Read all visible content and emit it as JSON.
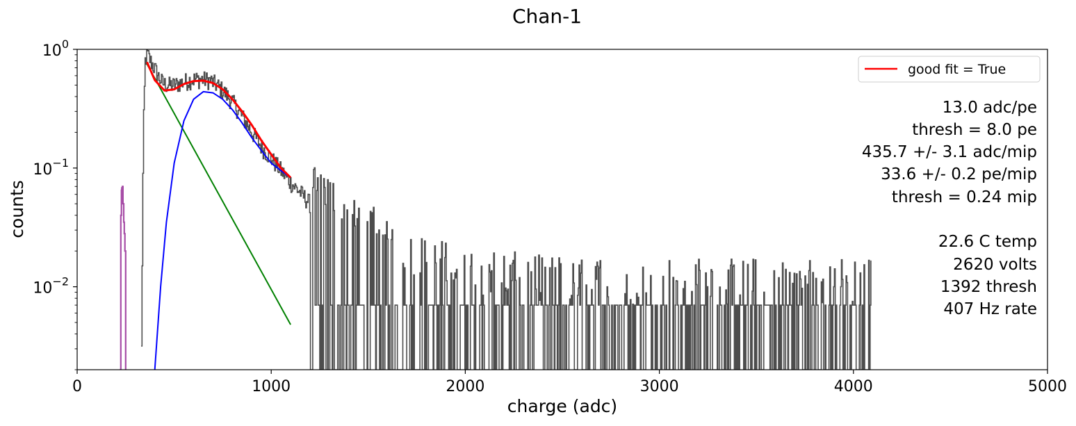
{
  "chart_data": {
    "type": "line",
    "title": "Chan-1",
    "xlabel": "charge (adc)",
    "ylabel": "counts",
    "xlim": [
      0,
      5000
    ],
    "ylim": [
      0.002,
      1.0
    ],
    "yscale": "log",
    "grid": false,
    "legend_loc": "top-right",
    "x_ticks": [
      {
        "value": 0,
        "label": "0"
      },
      {
        "value": 1000,
        "label": "1000"
      },
      {
        "value": 2000,
        "label": "2000"
      },
      {
        "value": 3000,
        "label": "3000"
      },
      {
        "value": 4000,
        "label": "4000"
      },
      {
        "value": 5000,
        "label": "5000"
      }
    ],
    "y_ticks": [
      {
        "value": 1.0,
        "base": "10",
        "exp": "0"
      },
      {
        "value": 0.1,
        "base": "10",
        "exp": "−1"
      },
      {
        "value": 0.01,
        "base": "10",
        "exp": "−2"
      }
    ],
    "legend": [
      {
        "label": "good fit = True",
        "color": "#ff0000"
      }
    ],
    "annotations": [
      "13.0  adc/pe",
      "thresh = 8.0 pe",
      "435.7 +/- 3.1  adc/mip",
      "33.6 +/- 0.2  pe/mip",
      "thresh = 0.24 mip",
      "",
      "22.6 C temp",
      "2620 volts",
      "1392 thresh",
      "407 Hz rate"
    ],
    "series": [
      {
        "role": "histogram",
        "color": "#4d4d4d",
        "x": [
          330,
          340,
          350,
          360,
          380,
          400,
          420,
          440,
          460,
          480,
          500,
          530,
          560,
          600,
          640,
          680,
          720,
          760,
          800,
          850,
          900,
          950,
          1000,
          1050,
          1100,
          1150,
          1200,
          1300,
          1400,
          1500,
          1600,
          1700,
          1800,
          1900,
          2000,
          2200,
          2400,
          2600,
          2800,
          3000,
          3200,
          3400,
          3600,
          3800,
          4000,
          4090
        ],
        "y": [
          0.003,
          0.2,
          0.8,
          0.92,
          0.78,
          0.68,
          0.58,
          0.52,
          0.5,
          0.5,
          0.5,
          0.52,
          0.54,
          0.56,
          0.56,
          0.55,
          0.5,
          0.43,
          0.36,
          0.27,
          0.2,
          0.15,
          0.12,
          0.095,
          0.075,
          0.062,
          0.05,
          0.035,
          0.026,
          0.02,
          0.016,
          0.013,
          0.011,
          0.0095,
          0.0085,
          0.008,
          0.0075,
          0.0072,
          0.007,
          0.007,
          0.007,
          0.007,
          0.007,
          0.007,
          0.007,
          0.007
        ]
      },
      {
        "role": "pedestal",
        "color": "#a64ca6",
        "x": [
          220,
          225,
          228,
          230,
          233,
          236,
          240,
          243,
          246,
          250
        ],
        "y": [
          0.002,
          0.04,
          0.065,
          0.068,
          0.07,
          0.05,
          0.035,
          0.028,
          0.02,
          0.002
        ]
      },
      {
        "role": "fit-total",
        "name": "good fit = True",
        "color": "#ff0000",
        "x": [
          360,
          400,
          450,
          500,
          550,
          600,
          650,
          700,
          750,
          800,
          850,
          900,
          950,
          1000,
          1050,
          1100
        ],
        "y": [
          0.78,
          0.55,
          0.45,
          0.46,
          0.51,
          0.54,
          0.545,
          0.52,
          0.46,
          0.38,
          0.3,
          0.23,
          0.17,
          0.13,
          0.1,
          0.083
        ]
      },
      {
        "role": "fit-exponential",
        "color": "#008000",
        "x": [
          360,
          1100
        ],
        "y": [
          0.75,
          0.0048
        ]
      },
      {
        "role": "fit-signal",
        "color": "#0000ff",
        "x": [
          400,
          430,
          460,
          500,
          550,
          600,
          650,
          700,
          750,
          800,
          850,
          900,
          950,
          1000,
          1050,
          1100
        ],
        "y": [
          0.002,
          0.01,
          0.035,
          0.11,
          0.25,
          0.38,
          0.44,
          0.43,
          0.38,
          0.31,
          0.24,
          0.18,
          0.14,
          0.11,
          0.095,
          0.083
        ]
      }
    ]
  }
}
